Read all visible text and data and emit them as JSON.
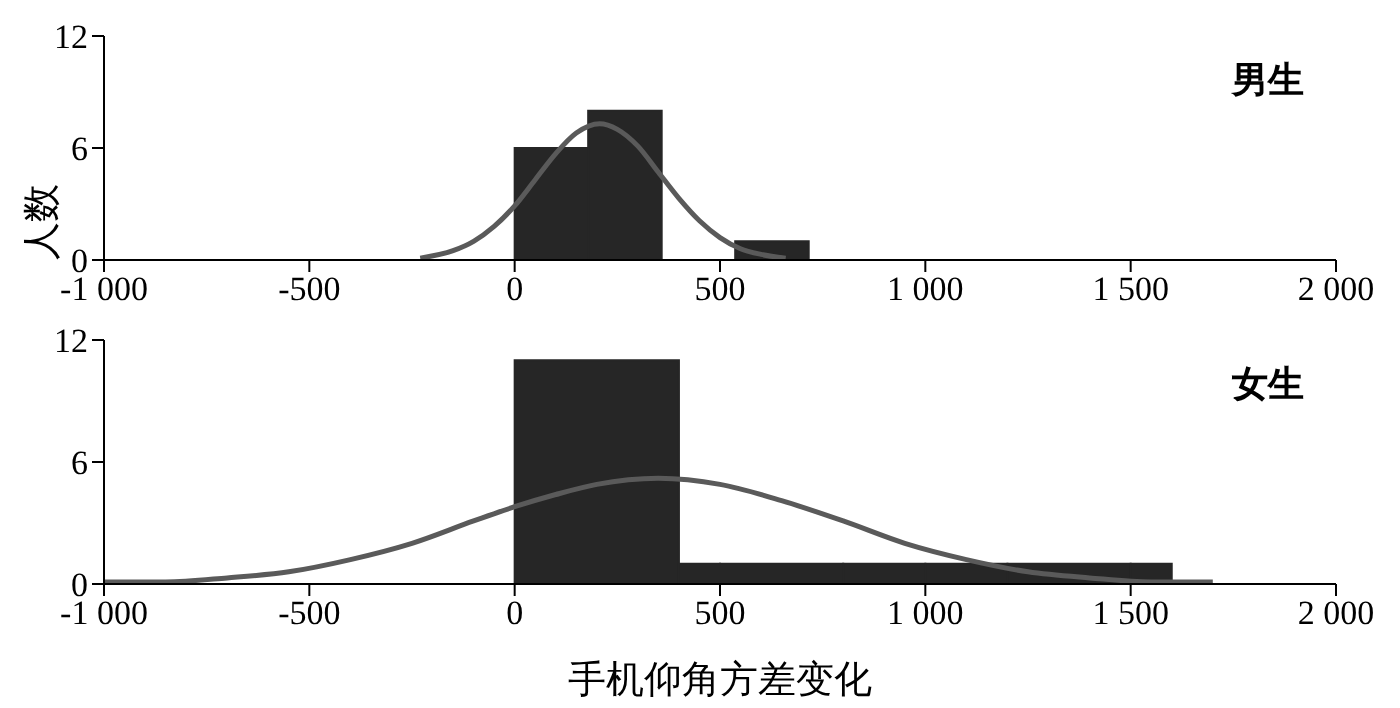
{
  "chart_data": [
    {
      "type": "histogram",
      "ylabel": "人数",
      "annotations": [
        "男生"
      ],
      "xlim": [
        -1000,
        2000
      ],
      "ylim": [
        0,
        12
      ],
      "yticks": [
        0,
        6,
        12
      ],
      "xticks": [
        {
          "value": -1000,
          "label": "-1 000"
        },
        -500,
        0,
        500,
        {
          "value": 1000,
          "label": "1 000"
        },
        {
          "value": 1500,
          "label": "1 500"
        },
        {
          "value": 2000,
          "label": "2 000"
        }
      ],
      "marker": "none",
      "series": [
        {
          "color": "#262626",
          "bins": [
            0,
            179,
            358,
            537,
            716
          ],
          "values": [
            6,
            8,
            0,
            1
          ]
        },
        {
          "type": "line",
          "color": "#5a5a5a",
          "x": [
            -230,
            -150,
            -100,
            -50,
            0,
            50,
            100,
            150,
            207,
            250,
            300,
            350,
            400,
            450,
            500,
            550,
            600,
            660
          ],
          "values": [
            0.1,
            0.5,
            1.0,
            1.8,
            2.9,
            4.3,
            5.7,
            6.8,
            7.3,
            7.0,
            6.1,
            4.7,
            3.3,
            2.1,
            1.2,
            0.6,
            0.3,
            0.1
          ]
        }
      ]
    },
    {
      "type": "histogram",
      "xlabel": "手机仰角方差变化",
      "annotations": [
        "女生"
      ],
      "xlim": [
        -1000,
        2000
      ],
      "ylim": [
        0,
        12
      ],
      "yticks": [
        0,
        6,
        12
      ],
      "xticks": [
        {
          "value": -1000,
          "label": "-1 000"
        },
        -500,
        0,
        500,
        {
          "value": 1000,
          "label": "1 000"
        },
        {
          "value": 1500,
          "label": "1 500"
        },
        {
          "value": 2000,
          "label": "2 000"
        }
      ],
      "marker": "none",
      "series": [
        {
          "color": "#262626",
          "bins": [
            0,
            400,
            500,
            800,
            1000,
            1200,
            1500,
            1600
          ],
          "values": [
            11,
            1,
            1,
            1,
            1,
            1,
            1
          ]
        },
        {
          "type": "line",
          "color": "#5a5a5a",
          "x": [
            -1000,
            -850,
            -700,
            -550,
            -400,
            -250,
            -100,
            0,
            100,
            200,
            350,
            500,
            650,
            800,
            950,
            1100,
            1250,
            1400,
            1550,
            1700
          ],
          "values": [
            0.1,
            0.1,
            0.3,
            0.6,
            1.2,
            2.0,
            3.1,
            3.8,
            4.4,
            4.9,
            5.2,
            4.9,
            4.1,
            3.1,
            2.0,
            1.2,
            0.6,
            0.3,
            0.1,
            0.1
          ]
        }
      ]
    }
  ]
}
